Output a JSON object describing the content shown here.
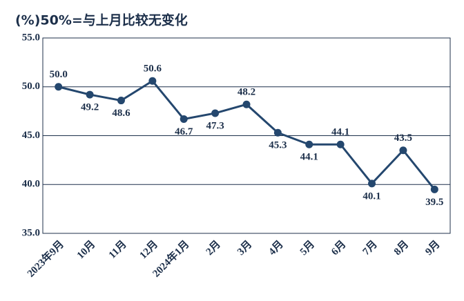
{
  "chart_data": {
    "type": "line",
    "title": "(%)50%=与上月比较无变化",
    "categories": [
      "2023年9月",
      "10月",
      "11月",
      "12月",
      "2024年1月",
      "2月",
      "3月",
      "4月",
      "5月",
      "6月",
      "7月",
      "8月",
      "9月"
    ],
    "series": [
      {
        "color": "#24476e",
        "values": [
          50.0,
          49.2,
          48.6,
          50.6,
          46.7,
          47.3,
          48.2,
          45.3,
          44.1,
          44.1,
          40.1,
          43.5,
          39.5
        ],
        "value_labels": [
          "50.0",
          "49.2",
          "48.6",
          "50.6",
          "46.7",
          "47.3",
          "48.2",
          "45.3",
          "44.1",
          "44.1",
          "40.1",
          "43.5",
          "39.5"
        ]
      }
    ],
    "ylim": [
      35,
      55
    ],
    "yticks": [
      {
        "value": 35,
        "label": "35.0"
      },
      {
        "value": 40,
        "label": "40.0"
      },
      {
        "value": 45,
        "label": "45.0"
      },
      {
        "value": 50,
        "label": "50.0"
      },
      {
        "value": 55,
        "label": "55.0"
      }
    ],
    "grid": true
  }
}
